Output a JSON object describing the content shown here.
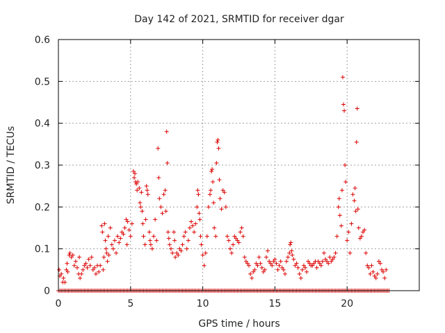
{
  "chart_data": {
    "type": "scatter",
    "title": "Day 142 of 2021, SRMTID for receiver dgar",
    "xlabel": "GPS time / hours",
    "ylabel": "SRMTID / TECUs",
    "xlim": [
      0,
      25
    ],
    "ylim": [
      0,
      0.6
    ],
    "x_ticks": [
      0,
      5,
      10,
      15,
      20
    ],
    "y_ticks": [
      0,
      0.1,
      0.2,
      0.3,
      0.4,
      0.5,
      0.6
    ],
    "x_tick_labels": [
      "0",
      "5",
      "10",
      "15",
      "20"
    ],
    "y_tick_labels": [
      "0",
      "0.1",
      "0.2",
      "0.3",
      "0.4",
      "0.5",
      "0.6"
    ],
    "grid": true,
    "marker": "+",
    "marker_color": "#dd0000",
    "zero_line": {
      "x_start": 0.0,
      "x_end": 22.9,
      "step": 0.1,
      "y": 0
    },
    "series": [
      {
        "name": "SRMTID",
        "points": [
          [
            0.05,
            0.05
          ],
          [
            0.1,
            0.035
          ],
          [
            0.2,
            0.04
          ],
          [
            0.3,
            0.02
          ],
          [
            0.35,
            0.03
          ],
          [
            0.45,
            0.02
          ],
          [
            0.55,
            0.05
          ],
          [
            0.6,
            0.065
          ],
          [
            0.65,
            0.045
          ],
          [
            0.75,
            0.085
          ],
          [
            0.8,
            0.09
          ],
          [
            0.9,
            0.08
          ],
          [
            1.0,
            0.085
          ],
          [
            1.1,
            0.06
          ],
          [
            1.2,
            0.07
          ],
          [
            1.3,
            0.055
          ],
          [
            1.4,
            0.04
          ],
          [
            1.45,
            0.08
          ],
          [
            1.5,
            0.03
          ],
          [
            1.6,
            0.04
          ],
          [
            1.7,
            0.05
          ],
          [
            1.8,
            0.06
          ],
          [
            1.9,
            0.065
          ],
          [
            2.0,
            0.055
          ],
          [
            2.1,
            0.075
          ],
          [
            2.2,
            0.06
          ],
          [
            2.3,
            0.08
          ],
          [
            2.4,
            0.05
          ],
          [
            2.5,
            0.055
          ],
          [
            2.6,
            0.04
          ],
          [
            2.7,
            0.06
          ],
          [
            2.8,
            0.045
          ],
          [
            2.9,
            0.06
          ],
          [
            3.0,
            0.155
          ],
          [
            3.05,
            0.14
          ],
          [
            3.1,
            0.05
          ],
          [
            3.15,
            0.08
          ],
          [
            3.2,
            0.16
          ],
          [
            3.25,
            0.12
          ],
          [
            3.3,
            0.1
          ],
          [
            3.35,
            0.09
          ],
          [
            3.4,
            0.07
          ],
          [
            3.45,
            0.13
          ],
          [
            3.5,
            0.085
          ],
          [
            3.6,
            0.15
          ],
          [
            3.7,
            0.11
          ],
          [
            3.8,
            0.1
          ],
          [
            3.9,
            0.12
          ],
          [
            4.0,
            0.09
          ],
          [
            4.1,
            0.13
          ],
          [
            4.2,
            0.115
          ],
          [
            4.3,
            0.125
          ],
          [
            4.4,
            0.14
          ],
          [
            4.5,
            0.135
          ],
          [
            4.6,
            0.15
          ],
          [
            4.7,
            0.17
          ],
          [
            4.75,
            0.11
          ],
          [
            4.8,
            0.165
          ],
          [
            4.9,
            0.145
          ],
          [
            5.0,
            0.13
          ],
          [
            5.1,
            0.16
          ],
          [
            5.2,
            0.285
          ],
          [
            5.25,
            0.27
          ],
          [
            5.3,
            0.28
          ],
          [
            5.35,
            0.26
          ],
          [
            5.4,
            0.255
          ],
          [
            5.45,
            0.24
          ],
          [
            5.5,
            0.26
          ],
          [
            5.6,
            0.245
          ],
          [
            5.65,
            0.21
          ],
          [
            5.7,
            0.2
          ],
          [
            5.75,
            0.235
          ],
          [
            5.8,
            0.19
          ],
          [
            5.85,
            0.16
          ],
          [
            5.9,
            0.13
          ],
          [
            6.0,
            0.11
          ],
          [
            6.05,
            0.17
          ],
          [
            6.1,
            0.25
          ],
          [
            6.15,
            0.24
          ],
          [
            6.2,
            0.23
          ],
          [
            6.3,
            0.14
          ],
          [
            6.35,
            0.12
          ],
          [
            6.4,
            0.11
          ],
          [
            6.5,
            0.1
          ],
          [
            6.6,
            0.13
          ],
          [
            6.7,
            0.17
          ],
          [
            6.8,
            0.12
          ],
          [
            6.9,
            0.34
          ],
          [
            6.95,
            0.27
          ],
          [
            7.0,
            0.22
          ],
          [
            7.1,
            0.2
          ],
          [
            7.2,
            0.185
          ],
          [
            7.3,
            0.23
          ],
          [
            7.4,
            0.24
          ],
          [
            7.45,
            0.19
          ],
          [
            7.5,
            0.38
          ],
          [
            7.55,
            0.305
          ],
          [
            7.6,
            0.14
          ],
          [
            7.65,
            0.125
          ],
          [
            7.7,
            0.11
          ],
          [
            7.8,
            0.1
          ],
          [
            7.9,
            0.09
          ],
          [
            8.0,
            0.14
          ],
          [
            8.05,
            0.12
          ],
          [
            8.1,
            0.08
          ],
          [
            8.2,
            0.09
          ],
          [
            8.3,
            0.085
          ],
          [
            8.4,
            0.1
          ],
          [
            8.5,
            0.095
          ],
          [
            8.6,
            0.11
          ],
          [
            8.7,
            0.13
          ],
          [
            8.8,
            0.14
          ],
          [
            8.9,
            0.1
          ],
          [
            9.0,
            0.12
          ],
          [
            9.1,
            0.15
          ],
          [
            9.2,
            0.165
          ],
          [
            9.3,
            0.155
          ],
          [
            9.4,
            0.14
          ],
          [
            9.5,
            0.16
          ],
          [
            9.6,
            0.2
          ],
          [
            9.65,
            0.24
          ],
          [
            9.7,
            0.23
          ],
          [
            9.75,
            0.185
          ],
          [
            9.8,
            0.17
          ],
          [
            9.85,
            0.13
          ],
          [
            9.9,
            0.11
          ],
          [
            10.0,
            0.085
          ],
          [
            10.1,
            0.06
          ],
          [
            10.2,
            0.09
          ],
          [
            10.3,
            0.13
          ],
          [
            10.4,
            0.2
          ],
          [
            10.5,
            0.23
          ],
          [
            10.55,
            0.24
          ],
          [
            10.6,
            0.285
          ],
          [
            10.65,
            0.29
          ],
          [
            10.7,
            0.26
          ],
          [
            10.75,
            0.21
          ],
          [
            10.8,
            0.15
          ],
          [
            10.9,
            0.13
          ],
          [
            10.95,
            0.305
          ],
          [
            11.0,
            0.355
          ],
          [
            11.05,
            0.36
          ],
          [
            11.1,
            0.34
          ],
          [
            11.15,
            0.265
          ],
          [
            11.2,
            0.22
          ],
          [
            11.3,
            0.195
          ],
          [
            11.4,
            0.24
          ],
          [
            11.5,
            0.235
          ],
          [
            11.6,
            0.2
          ],
          [
            11.7,
            0.13
          ],
          [
            11.8,
            0.12
          ],
          [
            11.9,
            0.1
          ],
          [
            12.0,
            0.09
          ],
          [
            12.1,
            0.11
          ],
          [
            12.2,
            0.13
          ],
          [
            12.3,
            0.125
          ],
          [
            12.4,
            0.12
          ],
          [
            12.5,
            0.115
          ],
          [
            12.6,
            0.14
          ],
          [
            12.7,
            0.15
          ],
          [
            12.8,
            0.13
          ],
          [
            12.9,
            0.08
          ],
          [
            13.0,
            0.07
          ],
          [
            13.1,
            0.065
          ],
          [
            13.2,
            0.06
          ],
          [
            13.3,
            0.04
          ],
          [
            13.4,
            0.03
          ],
          [
            13.5,
            0.045
          ],
          [
            13.6,
            0.05
          ],
          [
            13.7,
            0.065
          ],
          [
            13.8,
            0.06
          ],
          [
            13.9,
            0.08
          ],
          [
            14.0,
            0.065
          ],
          [
            14.1,
            0.055
          ],
          [
            14.2,
            0.045
          ],
          [
            14.3,
            0.05
          ],
          [
            14.4,
            0.08
          ],
          [
            14.5,
            0.095
          ],
          [
            14.6,
            0.07
          ],
          [
            14.7,
            0.065
          ],
          [
            14.8,
            0.06
          ],
          [
            14.9,
            0.07
          ],
          [
            15.0,
            0.075
          ],
          [
            15.1,
            0.065
          ],
          [
            15.2,
            0.05
          ],
          [
            15.3,
            0.06
          ],
          [
            15.4,
            0.07
          ],
          [
            15.5,
            0.055
          ],
          [
            15.6,
            0.05
          ],
          [
            15.7,
            0.04
          ],
          [
            15.8,
            0.07
          ],
          [
            15.9,
            0.08
          ],
          [
            16.0,
            0.09
          ],
          [
            16.05,
            0.11
          ],
          [
            16.1,
            0.115
          ],
          [
            16.15,
            0.095
          ],
          [
            16.2,
            0.085
          ],
          [
            16.3,
            0.075
          ],
          [
            16.4,
            0.06
          ],
          [
            16.5,
            0.065
          ],
          [
            16.6,
            0.055
          ],
          [
            16.7,
            0.04
          ],
          [
            16.8,
            0.03
          ],
          [
            16.9,
            0.05
          ],
          [
            17.0,
            0.06
          ],
          [
            17.1,
            0.055
          ],
          [
            17.2,
            0.045
          ],
          [
            17.3,
            0.07
          ],
          [
            17.4,
            0.065
          ],
          [
            17.5,
            0.06
          ],
          [
            17.6,
            0.06
          ],
          [
            17.7,
            0.065
          ],
          [
            17.8,
            0.07
          ],
          [
            17.9,
            0.055
          ],
          [
            18.0,
            0.07
          ],
          [
            18.1,
            0.065
          ],
          [
            18.2,
            0.06
          ],
          [
            18.3,
            0.07
          ],
          [
            18.4,
            0.09
          ],
          [
            18.5,
            0.075
          ],
          [
            18.6,
            0.07
          ],
          [
            18.7,
            0.065
          ],
          [
            18.8,
            0.08
          ],
          [
            18.9,
            0.07
          ],
          [
            19.0,
            0.075
          ],
          [
            19.1,
            0.08
          ],
          [
            19.2,
            0.09
          ],
          [
            19.3,
            0.13
          ],
          [
            19.4,
            0.2
          ],
          [
            19.45,
            0.22
          ],
          [
            19.5,
            0.18
          ],
          [
            19.6,
            0.155
          ],
          [
            19.65,
            0.24
          ],
          [
            19.7,
            0.51
          ],
          [
            19.75,
            0.445
          ],
          [
            19.8,
            0.43
          ],
          [
            19.85,
            0.3
          ],
          [
            19.9,
            0.26
          ],
          [
            20.0,
            0.12
          ],
          [
            20.1,
            0.14
          ],
          [
            20.2,
            0.09
          ],
          [
            20.3,
            0.16
          ],
          [
            20.4,
            0.23
          ],
          [
            20.5,
            0.215
          ],
          [
            20.55,
            0.245
          ],
          [
            20.6,
            0.19
          ],
          [
            20.65,
            0.355
          ],
          [
            20.7,
            0.435
          ],
          [
            20.75,
            0.195
          ],
          [
            20.8,
            0.15
          ],
          [
            20.9,
            0.125
          ],
          [
            21.0,
            0.13
          ],
          [
            21.1,
            0.14
          ],
          [
            21.2,
            0.145
          ],
          [
            21.3,
            0.09
          ],
          [
            21.4,
            0.06
          ],
          [
            21.5,
            0.055
          ],
          [
            21.6,
            0.04
          ],
          [
            21.7,
            0.06
          ],
          [
            21.8,
            0.045
          ],
          [
            21.9,
            0.035
          ],
          [
            22.0,
            0.03
          ],
          [
            22.1,
            0.04
          ],
          [
            22.2,
            0.07
          ],
          [
            22.3,
            0.065
          ],
          [
            22.4,
            0.05
          ],
          [
            22.5,
            0.045
          ],
          [
            22.6,
            0.03
          ],
          [
            22.7,
            0.05
          ]
        ]
      }
    ]
  }
}
